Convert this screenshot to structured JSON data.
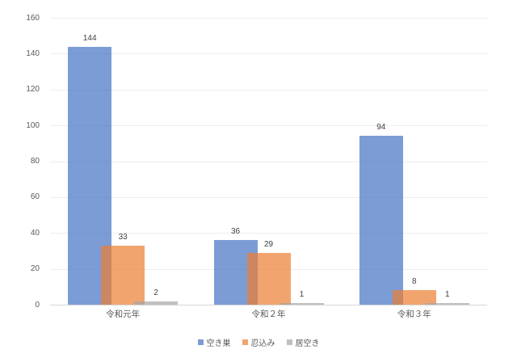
{
  "canvas": {
    "background": "#FFFFFF"
  },
  "chart_data": {
    "type": "bar",
    "title": "",
    "xlabel": "",
    "ylabel": "",
    "categories": [
      "令和元年",
      "令和２年",
      "令和３年"
    ],
    "series": [
      {
        "name": "空き巣",
        "color": "#4472C4",
        "opacity": 0.7,
        "values": [
          144,
          36,
          94
        ]
      },
      {
        "name": "忍込み",
        "color": "#ED7D31",
        "opacity": 0.7,
        "values": [
          33,
          29,
          8
        ]
      },
      {
        "name": "居空き",
        "color": "#A5A5A5",
        "opacity": 0.7,
        "values": [
          2,
          1,
          1
        ]
      }
    ],
    "ylim": [
      0,
      160
    ],
    "ytick_step": 20,
    "ytick_labels": [
      "0",
      "20",
      "40",
      "60",
      "80",
      "100",
      "120",
      "140",
      "160"
    ],
    "grid": true,
    "data_labels_shown": true,
    "legend_position": "bottom",
    "colors": {
      "grid_line": "#EDEDED",
      "axis_line": "#D6D6D6",
      "tick_text": "#595959",
      "category_text": "#595959",
      "legend_text": "#595959",
      "data_label_text": "#404040"
    }
  }
}
